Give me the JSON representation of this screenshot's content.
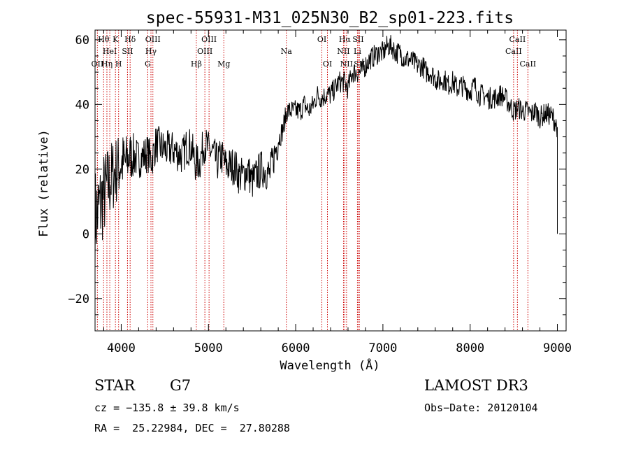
{
  "chart_data": {
    "type": "line",
    "title": "spec-55931-M31_025N30_B2_sp01-223.fits",
    "xlabel": "Wavelength (Å)",
    "ylabel": "Flux (relative)",
    "xlim": [
      3700,
      9100
    ],
    "ylim": [
      -30,
      63
    ],
    "x_ticks": [
      4000,
      5000,
      6000,
      7000,
      8000,
      9000
    ],
    "y_ticks": [
      -20,
      0,
      20,
      40,
      60
    ],
    "series": [
      {
        "name": "flux",
        "x": [
          3700,
          3750,
          3800,
          3850,
          3900,
          3950,
          4000,
          4050,
          4100,
          4150,
          4200,
          4250,
          4300,
          4350,
          4400,
          4450,
          4500,
          4550,
          4600,
          4650,
          4700,
          4750,
          4800,
          4850,
          4900,
          4950,
          5000,
          5050,
          5100,
          5150,
          5200,
          5250,
          5300,
          5350,
          5400,
          5450,
          5500,
          5550,
          5600,
          5650,
          5700,
          5750,
          5800,
          5850,
          5900,
          5950,
          6000,
          6050,
          6100,
          6150,
          6200,
          6250,
          6300,
          6350,
          6400,
          6450,
          6500,
          6550,
          6600,
          6650,
          6700,
          6750,
          6800,
          6850,
          6900,
          6950,
          7000,
          7050,
          7100,
          7150,
          7200,
          7250,
          7300,
          7350,
          7400,
          7450,
          7500,
          7550,
          7600,
          7650,
          7700,
          7750,
          7800,
          7850,
          7900,
          7950,
          8000,
          8050,
          8100,
          8150,
          8200,
          8250,
          8300,
          8350,
          8400,
          8450,
          8500,
          8550,
          8600,
          8650,
          8700,
          8750,
          8800,
          8850,
          8900,
          8950,
          9000
        ],
        "y": [
          5,
          8,
          12,
          15,
          18,
          20,
          22,
          22,
          24,
          24,
          23,
          24,
          25,
          23,
          28,
          27,
          26,
          26,
          26,
          25,
          24,
          27,
          27,
          22,
          22,
          28,
          26,
          25,
          22,
          24,
          21,
          21,
          21,
          18,
          18,
          20,
          16,
          18,
          20,
          20,
          18,
          24,
          29,
          32,
          38,
          38,
          38,
          38,
          40,
          38,
          40,
          43,
          42,
          43,
          43,
          45,
          47,
          47,
          45,
          50,
          50,
          50,
          52,
          54,
          55,
          56,
          56,
          58,
          58,
          56,
          56,
          54,
          54,
          53,
          52,
          52,
          50,
          50,
          48,
          47,
          48,
          46,
          47,
          45,
          46,
          45,
          44,
          46,
          43,
          43,
          42,
          42,
          42,
          43,
          42,
          40,
          38,
          39,
          38,
          38,
          37,
          38,
          36,
          37,
          37,
          36,
          33
        ]
      }
    ],
    "spectral_lines": [
      {
        "wl": 3727,
        "label": "OII",
        "row": 3
      },
      {
        "wl": 3798,
        "label": "Hθ",
        "row": 1
      },
      {
        "wl": 3836,
        "label": "Hη",
        "row": 3
      },
      {
        "wl": 3869,
        "label": "HeI",
        "row": 2
      },
      {
        "wl": 3934,
        "label": "K",
        "row": 1
      },
      {
        "wl": 3970,
        "label": "H",
        "row": 3
      },
      {
        "wl": 4072,
        "label": "SII",
        "row": 2
      },
      {
        "wl": 4102,
        "label": "Hδ",
        "row": 1
      },
      {
        "wl": 4304,
        "label": "G",
        "row": 3
      },
      {
        "wl": 4341,
        "label": "Hγ",
        "row": 2
      },
      {
        "wl": 4363,
        "label": "OIII",
        "row": 1
      },
      {
        "wl": 4861,
        "label": "Hβ",
        "row": 3
      },
      {
        "wl": 4959,
        "label": "OIII",
        "row": 2
      },
      {
        "wl": 5007,
        "label": "OIII",
        "row": 1
      },
      {
        "wl": 5176,
        "label": "Mg",
        "row": 3
      },
      {
        "wl": 5893,
        "label": "Na",
        "row": 2
      },
      {
        "wl": 6300,
        "label": "OI",
        "row": 1
      },
      {
        "wl": 6364,
        "label": "OI",
        "row": 3
      },
      {
        "wl": 6548,
        "label": "NII",
        "row": 2
      },
      {
        "wl": 6563,
        "label": "Hα",
        "row": 1
      },
      {
        "wl": 6583,
        "label": "NII",
        "row": 3
      },
      {
        "wl": 6708,
        "label": "Li",
        "row": 2
      },
      {
        "wl": 6716,
        "label": "SII",
        "row": 1
      },
      {
        "wl": 6731,
        "label": "SII",
        "row": 3
      },
      {
        "wl": 8498,
        "label": "CaII",
        "row": 2
      },
      {
        "wl": 8542,
        "label": "CaII",
        "row": 1
      },
      {
        "wl": 8662,
        "label": "CaII",
        "row": 3
      }
    ]
  },
  "info": {
    "class": "STAR",
    "subclass": "G7",
    "survey": "LAMOST DR3",
    "cz": "cz = −135.8 ± 39.8 km/s",
    "obs_date": "Obs−Date: 20120104",
    "coords": "RA =  25.22984, DEC =  27.80288"
  }
}
